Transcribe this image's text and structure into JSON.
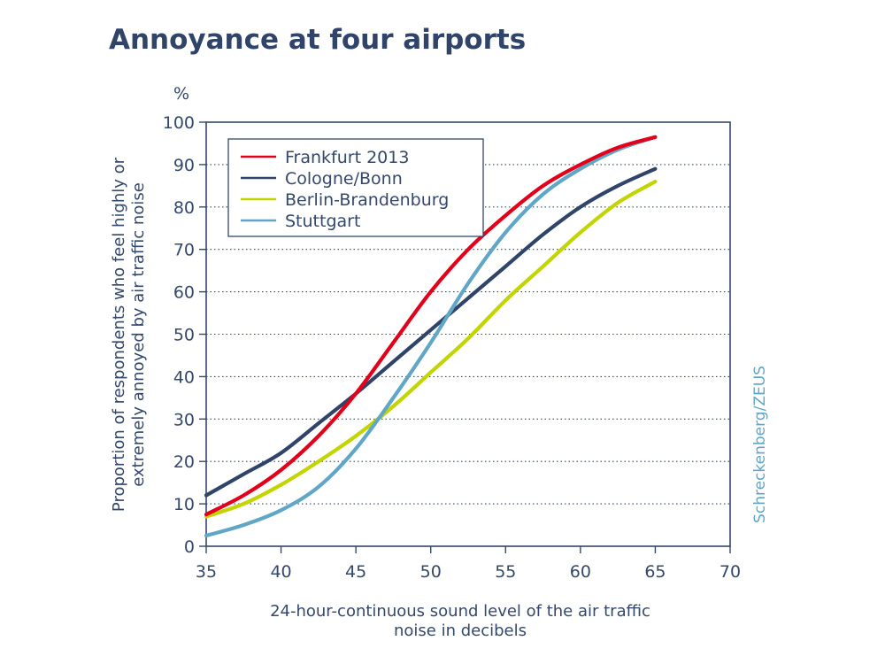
{
  "chart_data": {
    "type": "line",
    "title": "Annoyance at four airports",
    "unit_label": "%",
    "xlabel_lines": [
      "24-hour-continuous sound level of the air traffic",
      "noise in decibels"
    ],
    "ylabel_lines": [
      "Proportion of respondents who feel highly or",
      "extremely annoyed by air traffic noise"
    ],
    "credit": "Schreckenberg/ZEUS",
    "xlim": [
      35,
      70
    ],
    "ylim": [
      0,
      100
    ],
    "x_ticks": [
      35,
      40,
      45,
      50,
      55,
      60,
      65,
      70
    ],
    "y_ticks": [
      0,
      10,
      20,
      30,
      40,
      50,
      60,
      70,
      80,
      90,
      100
    ],
    "grid": "horizontal dotted",
    "legend_position": "top-left",
    "series": [
      {
        "name": "Frankfurt 2013",
        "color": "#e3001b",
        "x": [
          35,
          37.5,
          40,
          42.5,
          45,
          47.5,
          50,
          52.5,
          55,
          57.5,
          60,
          62.5,
          65
        ],
        "y": [
          7.5,
          12,
          18,
          26,
          36,
          48,
          60,
          70,
          78,
          85,
          90,
          94,
          96.5
        ]
      },
      {
        "name": "Cologne/Bonn",
        "color": "#2f4468",
        "x": [
          35,
          37.5,
          40,
          42.5,
          45,
          47.5,
          50,
          52.5,
          55,
          57.5,
          60,
          62.5,
          65
        ],
        "y": [
          12,
          17,
          22,
          29,
          36,
          43.5,
          51,
          58.5,
          66,
          73.5,
          80,
          85,
          89
        ]
      },
      {
        "name": "Berlin-Brandenburg",
        "color": "#c2d500",
        "x": [
          35,
          37.5,
          40,
          42.5,
          45,
          47.5,
          50,
          52.5,
          55,
          57.5,
          60,
          62.5,
          65
        ],
        "y": [
          7,
          10,
          14.5,
          20,
          26,
          33,
          41,
          49,
          58,
          66,
          74,
          81,
          86
        ]
      },
      {
        "name": "Stuttgart",
        "color": "#5fa6c7",
        "x": [
          35,
          37.5,
          40,
          42.5,
          45,
          47.5,
          50,
          52.5,
          55,
          57.5,
          60,
          62.5,
          65
        ],
        "y": [
          2.5,
          5,
          8.5,
          14,
          23,
          35,
          48,
          62,
          74,
          83,
          89,
          93.5,
          96.5
        ]
      }
    ]
  }
}
